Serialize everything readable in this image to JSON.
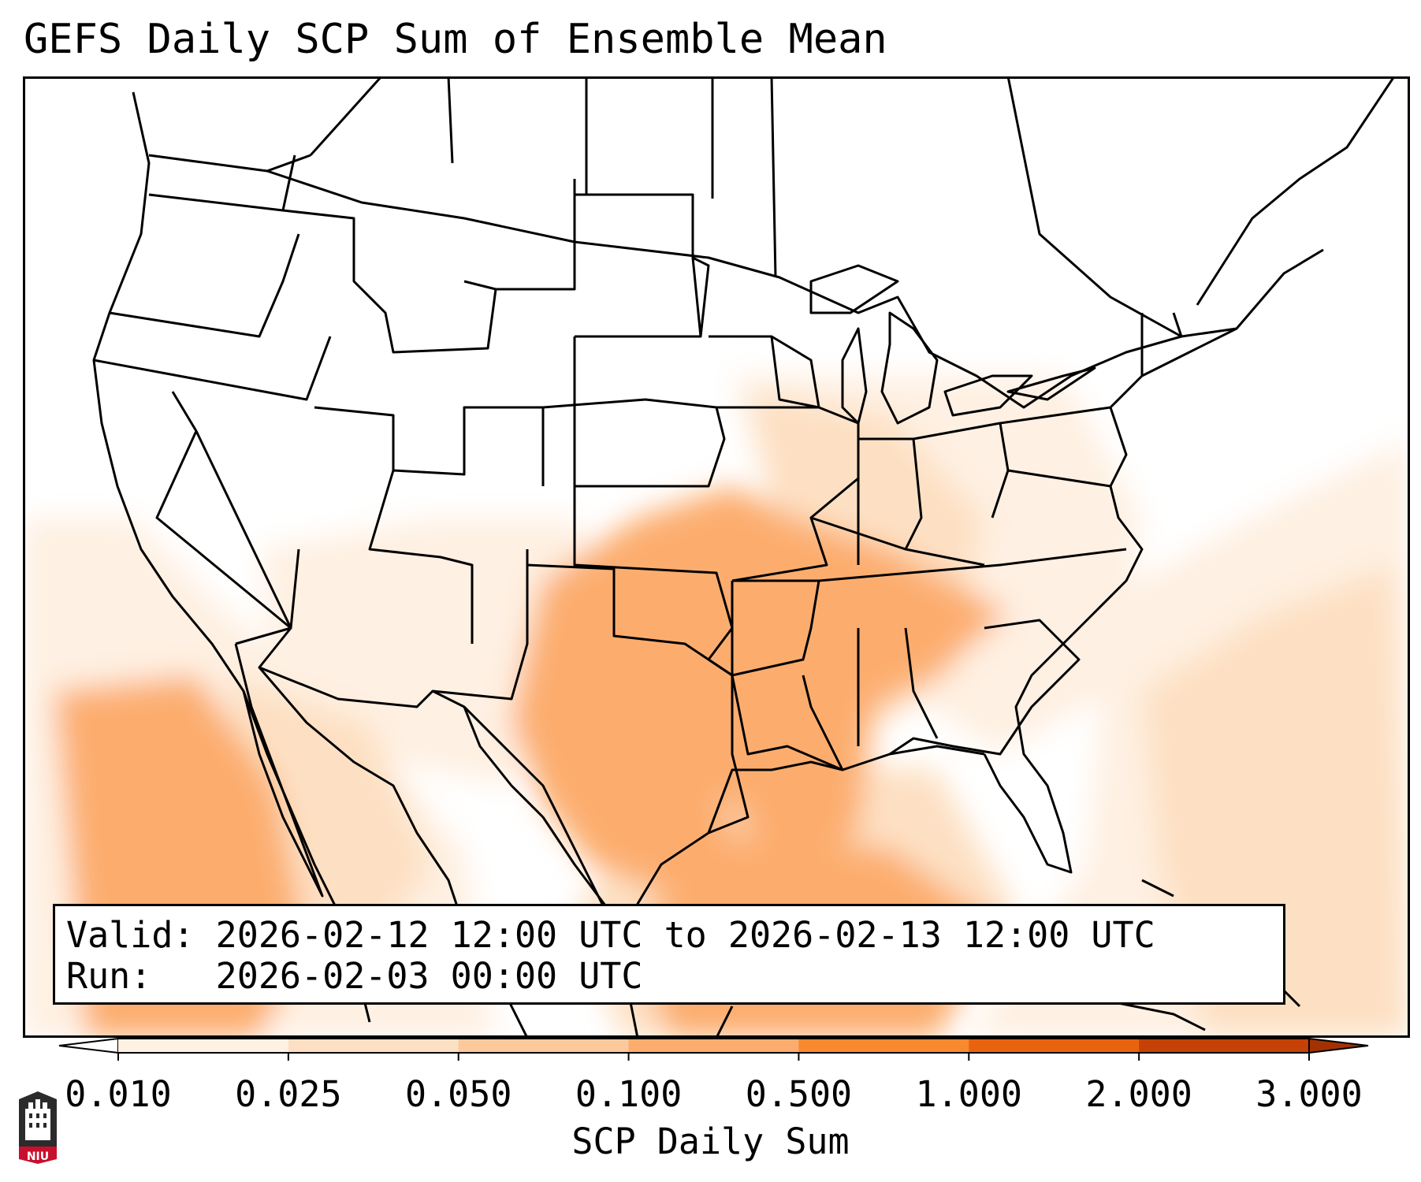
{
  "title": "GEFS Daily SCP Sum of Ensemble Mean",
  "infobox": {
    "valid_line": "Valid: 2026-02-12 12:00 UTC to 2026-02-13 12:00 UTC",
    "run_line": "Run:   2026-02-03 00:00 UTC"
  },
  "colorbar": {
    "label": "SCP Daily Sum",
    "ticks": [
      "0.010",
      "0.025",
      "0.050",
      "0.100",
      "0.500",
      "1.000",
      "2.000",
      "3.000"
    ],
    "colors": [
      "#fef0e2",
      "#fde0c3",
      "#fdc89c",
      "#fcad6e",
      "#f8892f",
      "#e9630f",
      "#c54105"
    ],
    "over_color": "#a33203",
    "under_color": "#ffffff",
    "extend": "both"
  },
  "map": {
    "region": "CONUS",
    "regions": [
      {
        "name": "Tennessee Valley / Mid-South",
        "level_index": 3
      },
      {
        "name": "Texas and Oklahoma",
        "level_index": 3
      },
      {
        "name": "Western Gulf of Mexico",
        "level_index": 3
      },
      {
        "name": "Eastern Pacific off Mexico",
        "level_index": 3
      },
      {
        "name": "Kentucky / Ohio Valley",
        "level_index": 2
      },
      {
        "name": "Western Atlantic",
        "level_index": 1
      },
      {
        "name": "Southwest / Mexico",
        "level_index": 1
      }
    ]
  },
  "logo": {
    "text": "NIU"
  }
}
